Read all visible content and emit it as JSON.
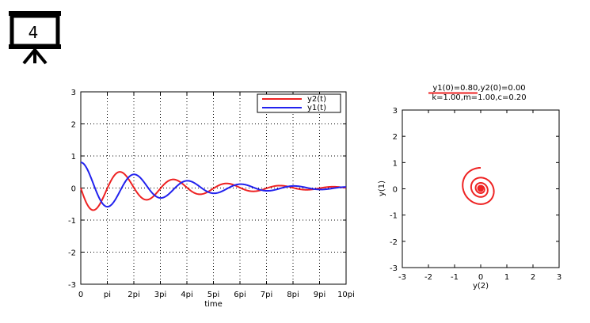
{
  "slide": {
    "number": "4",
    "icon": "presentation-board-icon"
  },
  "chart_data": [
    {
      "type": "line",
      "xlabel": "time",
      "ylabel": "",
      "xlim": [
        0,
        10
      ],
      "ylim": [
        -3,
        3
      ],
      "x_unit": "pi",
      "x_ticks": [
        0,
        1,
        2,
        3,
        4,
        5,
        6,
        7,
        8,
        9,
        10
      ],
      "x_tick_labels": [
        "0",
        "pi",
        "2pi",
        "3pi",
        "4pi",
        "5pi",
        "6pi",
        "7pi",
        "8pi",
        "9pi",
        "10pi"
      ],
      "y_ticks": [
        -3,
        -2,
        -1,
        0,
        1,
        2,
        3
      ],
      "y_tick_labels": [
        "-3",
        "-2",
        "-1",
        "0",
        "1",
        "2",
        "3"
      ],
      "grid": true,
      "legend_position": "top-right",
      "model": {
        "k": 1.0,
        "m": 1.0,
        "c": 0.2,
        "y1_0": 0.8,
        "y2_0": 0.0
      },
      "series": [
        {
          "name": "y2(t)",
          "color": "#ee2222"
        },
        {
          "name": "y1(t)",
          "color": "#2222ee"
        }
      ]
    },
    {
      "type": "line",
      "title_lines": [
        "y1(0)=0.80,y2(0)=0.00",
        "k=1.00,m=1.00,c=0.20"
      ],
      "xlabel": "y(2)",
      "ylabel": "y(1)",
      "xlim": [
        -3,
        3
      ],
      "ylim": [
        -3,
        3
      ],
      "x_ticks": [
        -3,
        -2,
        -1,
        0,
        1,
        2,
        3
      ],
      "x_tick_labels": [
        "-3",
        "-2",
        "-1",
        "0",
        "1",
        "2",
        "3"
      ],
      "y_ticks": [
        -3,
        -2,
        -1,
        0,
        1,
        2,
        3
      ],
      "y_tick_labels": [
        "-3",
        "-2",
        "-1",
        "0",
        "1",
        "2",
        "3"
      ],
      "grid": false,
      "series": [
        {
          "color": "#ee2222"
        }
      ]
    }
  ]
}
